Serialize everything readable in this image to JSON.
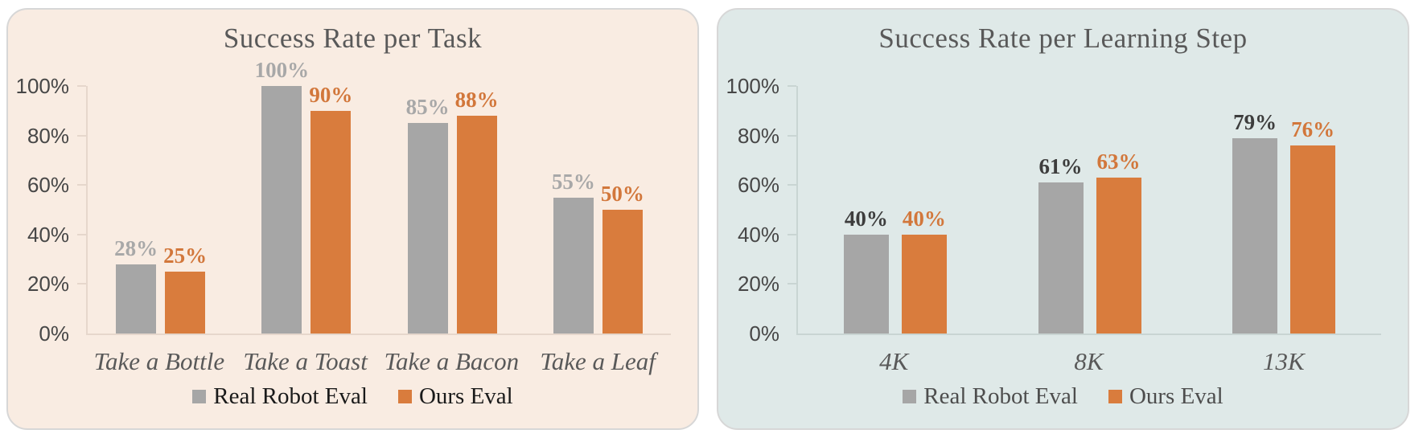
{
  "chart_data": [
    {
      "type": "bar",
      "title": "Success Rate per Task",
      "xlabel": "",
      "ylabel": "",
      "ylim": [
        0,
        100
      ],
      "grid": false,
      "legend_position": "bottom",
      "categories": [
        "Take a Bottle",
        "Take a Toast",
        "Take a Bacon",
        "Take a Leaf"
      ],
      "series": [
        {
          "name": "Real Robot Eval",
          "color": "#A6A6A6",
          "label_color": "#A8A8A8",
          "values": [
            28,
            100,
            85,
            55
          ],
          "labels": [
            "28%",
            "100%",
            "85%",
            "55%"
          ]
        },
        {
          "name": "Ours Eval",
          "color": "#D97C3D",
          "label_color": "#D2773B",
          "values": [
            25,
            90,
            88,
            50
          ],
          "labels": [
            "25%",
            "90%",
            "88%",
            "50%"
          ]
        }
      ],
      "y_ticks": [
        {
          "value": 0,
          "label": "0%"
        },
        {
          "value": 20,
          "label": "20%"
        },
        {
          "value": 40,
          "label": "40%"
        },
        {
          "value": 60,
          "label": "60%"
        },
        {
          "value": 80,
          "label": "80%"
        },
        {
          "value": 100,
          "label": "100%"
        }
      ],
      "colors": {
        "panel_bg": "#F9ECE2",
        "axis": "#E6D7CC",
        "title_text": "#595959",
        "tick_text": "#474747",
        "category_text": "#595959",
        "legend_text": "#1A1A1A"
      }
    },
    {
      "type": "bar",
      "title": "Success Rate per Learning Step",
      "xlabel": "",
      "ylabel": "",
      "ylim": [
        0,
        100
      ],
      "grid": false,
      "legend_position": "bottom",
      "categories": [
        "4K",
        "8K",
        "13K"
      ],
      "series": [
        {
          "name": "Real Robot Eval",
          "color": "#A6A6A6",
          "label_color": "#3D3D3D",
          "values": [
            40,
            61,
            79
          ],
          "labels": [
            "40%",
            "61%",
            "79%"
          ]
        },
        {
          "name": "Ours Eval",
          "color": "#D97C3D",
          "label_color": "#D2773B",
          "values": [
            40,
            63,
            76
          ],
          "labels": [
            "40%",
            "63%",
            "76%"
          ]
        }
      ],
      "y_ticks": [
        {
          "value": 0,
          "label": "0%"
        },
        {
          "value": 20,
          "label": "20%"
        },
        {
          "value": 40,
          "label": "40%"
        },
        {
          "value": 60,
          "label": "60%"
        },
        {
          "value": 80,
          "label": "80%"
        },
        {
          "value": 100,
          "label": "100%"
        }
      ],
      "colors": {
        "panel_bg": "#DFE9E8",
        "axis": "#C9D5D3",
        "title_text": "#595959",
        "tick_text": "#474747",
        "category_text": "#595959",
        "legend_text": "#4D4D4D"
      }
    }
  ]
}
